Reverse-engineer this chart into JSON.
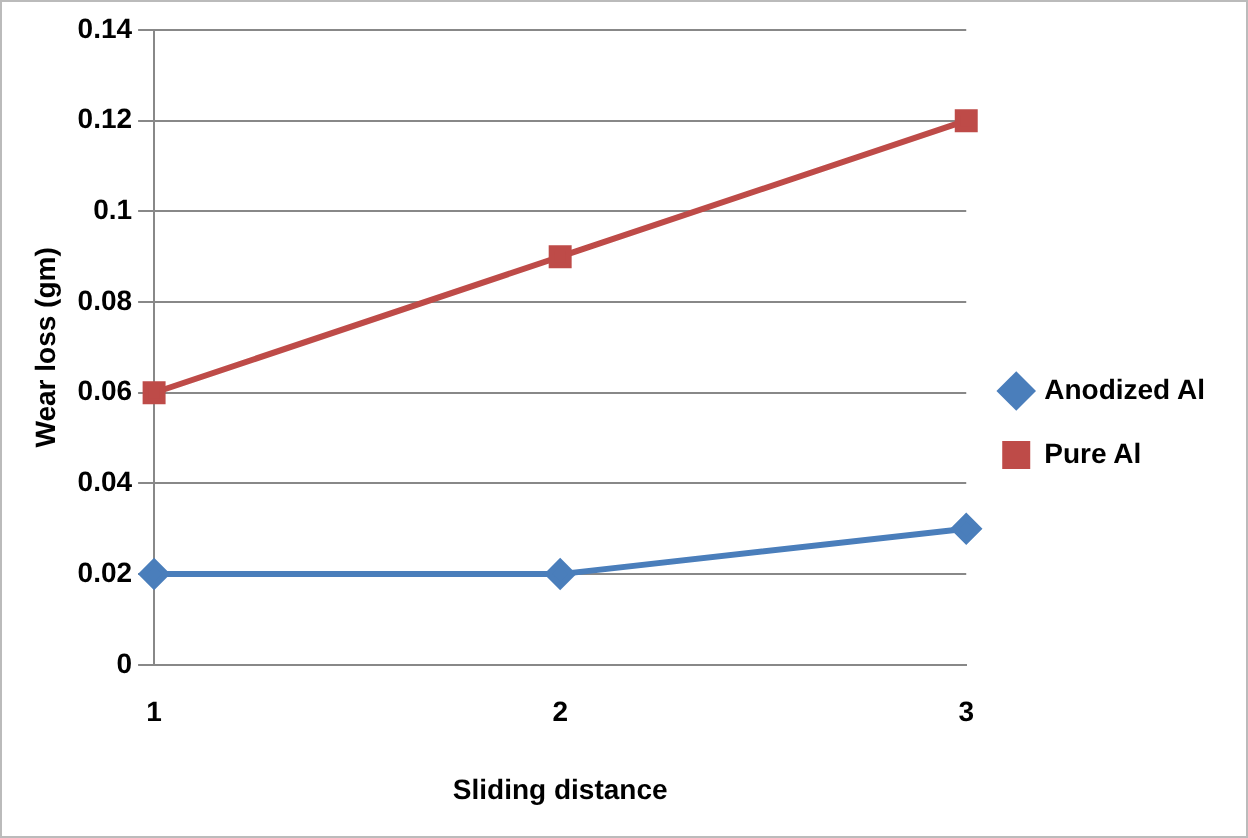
{
  "chart_data": {
    "type": "line",
    "xlabel": "Sliding distance",
    "ylabel": "Wear loss (gm)",
    "categories": [
      "1",
      "2",
      "3"
    ],
    "series": [
      {
        "name": "Anodized Al",
        "color": "#4a7ebb",
        "marker": "diamond",
        "values": [
          0.02,
          0.02,
          0.03
        ]
      },
      {
        "name": "Pure Al",
        "color": "#be4b48",
        "marker": "square",
        "values": [
          0.06,
          0.09,
          0.12
        ]
      }
    ],
    "ylim": [
      0,
      0.14
    ],
    "yticks": [
      0,
      0.02,
      0.04,
      0.06,
      0.08,
      0.1,
      0.12,
      0.14
    ],
    "grid": "y",
    "legend": "right",
    "line_style": "solid"
  }
}
